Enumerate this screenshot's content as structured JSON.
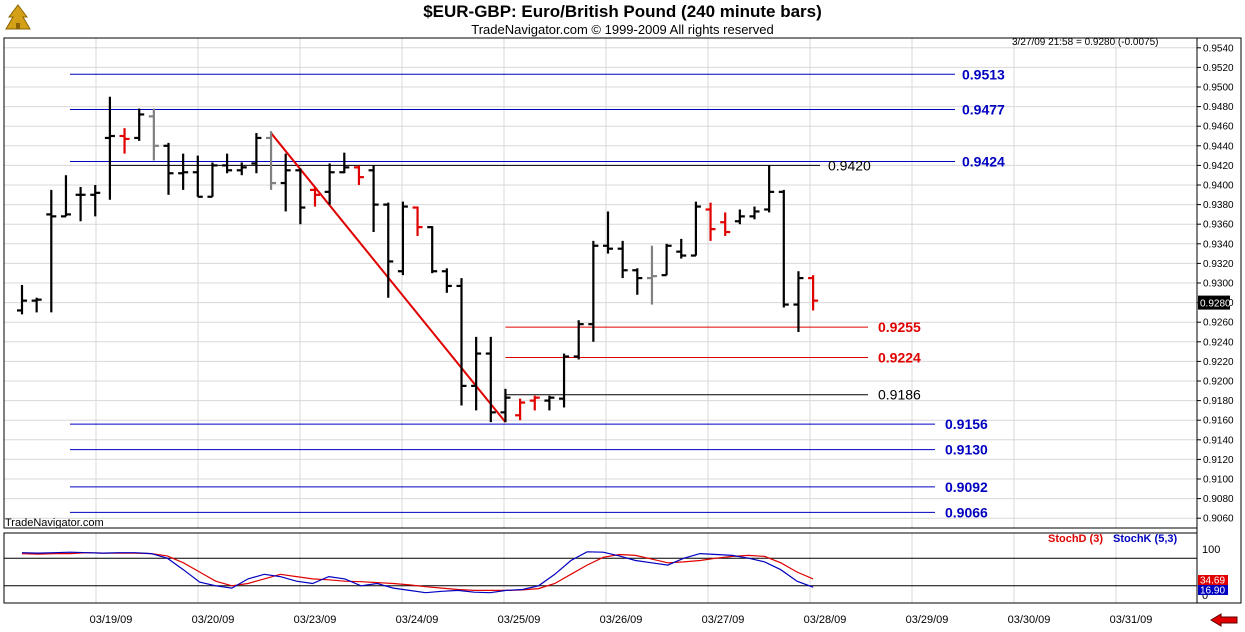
{
  "title": "$EUR-GBP:  Euro/British Pound  (240 minute bars)",
  "copyright": "TradeNavigator.com © 1999-2009 All rights reserved",
  "stamp": "3/27/09 21:58 = 0.9280 (-0.0075)",
  "watermark": "TradeNavigator.com",
  "colors": {
    "up_bar": "#000000",
    "down_bar": "#e00000",
    "neutral_bar": "#808080",
    "blue_level": "#0000c0",
    "red_level": "#e00000",
    "black_level": "#000000",
    "trendline": "#e00000",
    "stoch_d": "#e00000",
    "stoch_k": "#0000c0"
  },
  "chart_data": [
    {
      "type": "ohlc",
      "title": "$EUR-GBP:  Euro/British Pound  (240 minute bars)",
      "ylim": [
        0.905,
        0.955
      ],
      "y_ticks": [
        "0.9540",
        "0.9520",
        "0.9500",
        "0.9480",
        "0.9460",
        "0.9440",
        "0.9420",
        "0.9400",
        "0.9380",
        "0.9360",
        "0.9340",
        "0.9320",
        "0.9300",
        "0.9280",
        "0.9260",
        "0.9240",
        "0.9220",
        "0.9200",
        "0.9180",
        "0.9160",
        "0.9140",
        "0.9120",
        "0.9100",
        "0.9080",
        "0.9060"
      ],
      "x_ticks": [
        "03/19/09",
        "03/20/09",
        "03/23/09",
        "03/24/09",
        "03/25/09",
        "03/26/09",
        "03/27/09",
        "03/28/09",
        "03/29/09",
        "03/30/09",
        "03/31/09"
      ],
      "last_price": "0.9280",
      "bars": [
        {
          "o": 0.9272,
          "h": 0.9298,
          "l": 0.9268,
          "c": 0.9282,
          "col": "k"
        },
        {
          "o": 0.9282,
          "h": 0.9285,
          "l": 0.927,
          "c": 0.9283,
          "col": "k"
        },
        {
          "o": 0.937,
          "h": 0.9395,
          "l": 0.927,
          "c": 0.9368,
          "col": "k"
        },
        {
          "o": 0.9368,
          "h": 0.941,
          "l": 0.9368,
          "c": 0.937,
          "col": "k"
        },
        {
          "o": 0.939,
          "h": 0.9398,
          "l": 0.9363,
          "c": 0.939,
          "col": "k"
        },
        {
          "o": 0.939,
          "h": 0.94,
          "l": 0.9368,
          "c": 0.9392,
          "col": "k"
        },
        {
          "o": 0.9448,
          "h": 0.949,
          "l": 0.9385,
          "c": 0.945,
          "col": "k"
        },
        {
          "o": 0.945,
          "h": 0.9458,
          "l": 0.9432,
          "c": 0.9447,
          "col": "r"
        },
        {
          "o": 0.9448,
          "h": 0.9478,
          "l": 0.9445,
          "c": 0.9472,
          "col": "k"
        },
        {
          "o": 0.947,
          "h": 0.9478,
          "l": 0.9425,
          "c": 0.944,
          "col": "g"
        },
        {
          "o": 0.944,
          "h": 0.9443,
          "l": 0.939,
          "c": 0.9412,
          "col": "k"
        },
        {
          "o": 0.9412,
          "h": 0.9432,
          "l": 0.9395,
          "c": 0.9413,
          "col": "k"
        },
        {
          "o": 0.9413,
          "h": 0.943,
          "l": 0.9388,
          "c": 0.9388,
          "col": "k"
        },
        {
          "o": 0.9388,
          "h": 0.9423,
          "l": 0.9388,
          "c": 0.942,
          "col": "k"
        },
        {
          "o": 0.942,
          "h": 0.9432,
          "l": 0.9412,
          "c": 0.9415,
          "col": "k"
        },
        {
          "o": 0.9415,
          "h": 0.9423,
          "l": 0.941,
          "c": 0.9418,
          "col": "k"
        },
        {
          "o": 0.9422,
          "h": 0.9453,
          "l": 0.9412,
          "c": 0.9448,
          "col": "k"
        },
        {
          "o": 0.9448,
          "h": 0.9455,
          "l": 0.9395,
          "c": 0.9402,
          "col": "g"
        },
        {
          "o": 0.9402,
          "h": 0.9432,
          "l": 0.9373,
          "c": 0.9415,
          "col": "k"
        },
        {
          "o": 0.9415,
          "h": 0.9417,
          "l": 0.936,
          "c": 0.9377,
          "col": "k"
        },
        {
          "o": 0.9395,
          "h": 0.9398,
          "l": 0.9378,
          "c": 0.939,
          "col": "r"
        },
        {
          "o": 0.9393,
          "h": 0.9422,
          "l": 0.938,
          "c": 0.9413,
          "col": "k"
        },
        {
          "o": 0.9413,
          "h": 0.9433,
          "l": 0.9412,
          "c": 0.9418,
          "col": "k"
        },
        {
          "o": 0.9418,
          "h": 0.942,
          "l": 0.94,
          "c": 0.9408,
          "col": "r"
        },
        {
          "o": 0.9415,
          "h": 0.942,
          "l": 0.9352,
          "c": 0.938,
          "col": "k"
        },
        {
          "o": 0.938,
          "h": 0.9382,
          "l": 0.9285,
          "c": 0.9322,
          "col": "k"
        },
        {
          "o": 0.9312,
          "h": 0.9383,
          "l": 0.9308,
          "c": 0.9378,
          "col": "k"
        },
        {
          "o": 0.9377,
          "h": 0.9378,
          "l": 0.9348,
          "c": 0.9357,
          "col": "r"
        },
        {
          "o": 0.9357,
          "h": 0.9358,
          "l": 0.931,
          "c": 0.9312,
          "col": "k"
        },
        {
          "o": 0.9312,
          "h": 0.9315,
          "l": 0.929,
          "c": 0.9297,
          "col": "k"
        },
        {
          "o": 0.9297,
          "h": 0.9305,
          "l": 0.9175,
          "c": 0.9195,
          "col": "k"
        },
        {
          "o": 0.9195,
          "h": 0.9245,
          "l": 0.917,
          "c": 0.9228,
          "col": "k"
        },
        {
          "o": 0.9228,
          "h": 0.9245,
          "l": 0.9158,
          "c": 0.9168,
          "col": "k"
        },
        {
          "o": 0.9168,
          "h": 0.9192,
          "l": 0.9158,
          "c": 0.9183,
          "col": "k"
        },
        {
          "o": 0.9165,
          "h": 0.9182,
          "l": 0.916,
          "c": 0.9178,
          "col": "r"
        },
        {
          "o": 0.918,
          "h": 0.9185,
          "l": 0.917,
          "c": 0.9183,
          "col": "r"
        },
        {
          "o": 0.918,
          "h": 0.9185,
          "l": 0.917,
          "c": 0.9183,
          "col": "k"
        },
        {
          "o": 0.9182,
          "h": 0.9228,
          "l": 0.9173,
          "c": 0.9225,
          "col": "k"
        },
        {
          "o": 0.9225,
          "h": 0.9262,
          "l": 0.9222,
          "c": 0.9258,
          "col": "k"
        },
        {
          "o": 0.9258,
          "h": 0.9343,
          "l": 0.924,
          "c": 0.9338,
          "col": "k"
        },
        {
          "o": 0.9338,
          "h": 0.9373,
          "l": 0.933,
          "c": 0.9335,
          "col": "k"
        },
        {
          "o": 0.9335,
          "h": 0.9343,
          "l": 0.9305,
          "c": 0.9313,
          "col": "k"
        },
        {
          "o": 0.9313,
          "h": 0.9315,
          "l": 0.9288,
          "c": 0.9305,
          "col": "k"
        },
        {
          "o": 0.9305,
          "h": 0.9338,
          "l": 0.9278,
          "c": 0.9307,
          "col": "g"
        },
        {
          "o": 0.9308,
          "h": 0.934,
          "l": 0.9308,
          "c": 0.9338,
          "col": "k"
        },
        {
          "o": 0.9332,
          "h": 0.9345,
          "l": 0.9325,
          "c": 0.9328,
          "col": "k"
        },
        {
          "o": 0.9328,
          "h": 0.9383,
          "l": 0.9328,
          "c": 0.9378,
          "col": "k"
        },
        {
          "o": 0.9375,
          "h": 0.9382,
          "l": 0.9343,
          "c": 0.9355,
          "col": "r"
        },
        {
          "o": 0.9362,
          "h": 0.9372,
          "l": 0.9348,
          "c": 0.9352,
          "col": "r"
        },
        {
          "o": 0.9363,
          "h": 0.9375,
          "l": 0.936,
          "c": 0.9368,
          "col": "k"
        },
        {
          "o": 0.9368,
          "h": 0.9378,
          "l": 0.9365,
          "c": 0.9373,
          "col": "k"
        },
        {
          "o": 0.9375,
          "h": 0.942,
          "l": 0.9372,
          "c": 0.9393,
          "col": "k"
        },
        {
          "o": 0.9393,
          "h": 0.9395,
          "l": 0.9275,
          "c": 0.9278,
          "col": "k"
        },
        {
          "o": 0.9278,
          "h": 0.9312,
          "l": 0.925,
          "c": 0.9305,
          "col": "k"
        },
        {
          "o": 0.9305,
          "h": 0.9308,
          "l": 0.9272,
          "c": 0.9282,
          "col": "r"
        }
      ],
      "levels": [
        {
          "value": 0.9513,
          "label": "0.9513",
          "color": "blue"
        },
        {
          "value": 0.9477,
          "label": "0.9477",
          "color": "blue"
        },
        {
          "value": 0.9424,
          "label": "0.9424",
          "color": "blue"
        },
        {
          "value": 0.942,
          "label": "0.9420",
          "color": "black",
          "from_bar": 6
        },
        {
          "value": 0.9255,
          "label": "0.9255",
          "color": "red",
          "from_bar": 33
        },
        {
          "value": 0.9224,
          "label": "0.9224",
          "color": "red",
          "from_bar": 33
        },
        {
          "value": 0.9186,
          "label": "0.9186",
          "color": "black",
          "from_bar": 33
        },
        {
          "value": 0.9156,
          "label": "0.9156",
          "color": "blue"
        },
        {
          "value": 0.913,
          "label": "0.9130",
          "color": "blue"
        },
        {
          "value": 0.9092,
          "label": "0.9092",
          "color": "blue"
        },
        {
          "value": 0.9066,
          "label": "0.9066",
          "color": "blue"
        }
      ],
      "trendline": {
        "from": {
          "bar": 17,
          "price": 0.9453
        },
        "to": {
          "bar": 33,
          "price": 0.9158
        }
      }
    },
    {
      "type": "line",
      "title": "Stochastic",
      "ylim": [
        0,
        100
      ],
      "y_ticks": [
        "100",
        "0"
      ],
      "reference_lines": [
        80,
        20
      ],
      "last_values": [
        "34.69",
        "16.90"
      ],
      "series": [
        {
          "name": "StochD (3)",
          "color": "red",
          "values": [
            90,
            89,
            90,
            90,
            92,
            91,
            91,
            91,
            90,
            85,
            70,
            50,
            30,
            20,
            25,
            35,
            45,
            40,
            35,
            33,
            30,
            29,
            27,
            25,
            22,
            18,
            15,
            12,
            10,
            10,
            10,
            11,
            14,
            25,
            45,
            65,
            82,
            88,
            86,
            78,
            70,
            72,
            75,
            80,
            84,
            86,
            84,
            70,
            50,
            35
          ]
        },
        {
          "name": "StochK (5,3)",
          "color": "blue",
          "values": [
            92,
            91,
            92,
            93,
            92,
            91,
            92,
            92,
            90,
            80,
            55,
            28,
            20,
            15,
            35,
            45,
            40,
            30,
            25,
            40,
            35,
            20,
            25,
            15,
            10,
            5,
            8,
            10,
            6,
            5,
            10,
            12,
            20,
            45,
            75,
            94,
            93,
            85,
            75,
            70,
            65,
            80,
            90,
            88,
            86,
            80,
            72,
            55,
            30,
            16.9
          ]
        }
      ]
    }
  ]
}
